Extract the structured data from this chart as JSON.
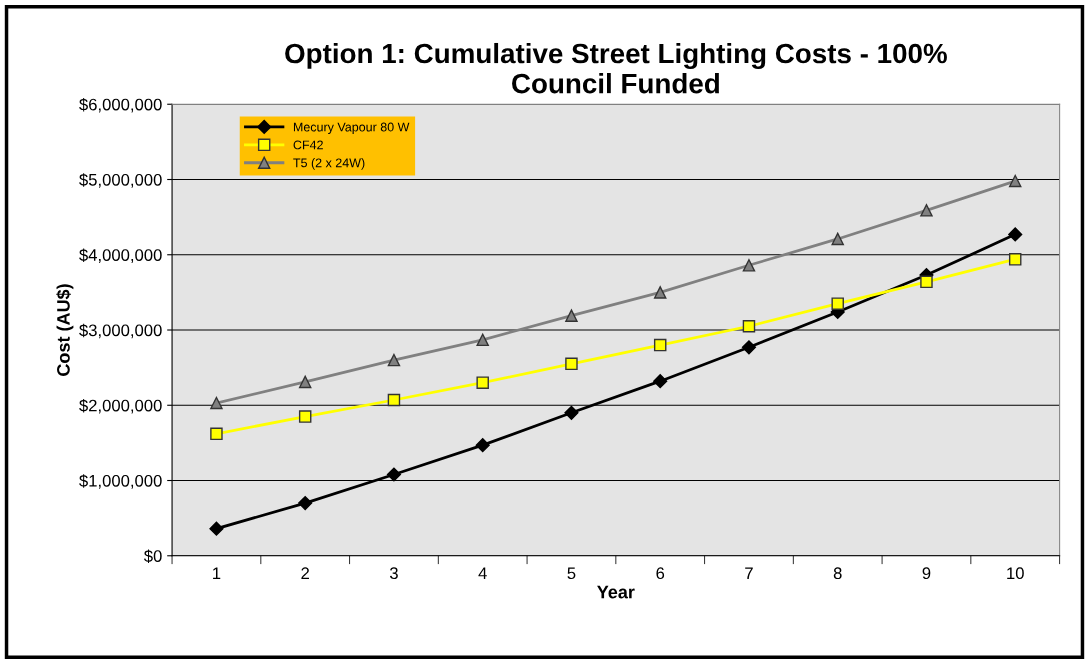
{
  "chart_data": {
    "type": "line",
    "title": "Option 1: Cumulative Street Lighting Costs - 100%\nCouncil Funded",
    "xlabel": "Year",
    "ylabel": "Cost (AU$)",
    "categories": [
      "1",
      "2",
      "3",
      "4",
      "5",
      "6",
      "7",
      "8",
      "9",
      "10"
    ],
    "series": [
      {
        "name": "Mecury Vapour 80 W",
        "color": "#000000",
        "marker": "diamond",
        "values": [
          360000,
          700000,
          1080000,
          1470000,
          1900000,
          2320000,
          2770000,
          3240000,
          3730000,
          4270000
        ]
      },
      {
        "name": "CF42",
        "color": "#ffff00",
        "marker": "square",
        "values": [
          1620000,
          1850000,
          2070000,
          2300000,
          2550000,
          2800000,
          3050000,
          3350000,
          3640000,
          3940000
        ]
      },
      {
        "name": "T5 (2 x 24W)",
        "color": "#808080",
        "marker": "triangle",
        "values": [
          2030000,
          2310000,
          2600000,
          2870000,
          3190000,
          3500000,
          3860000,
          4210000,
          4590000,
          4980000
        ]
      }
    ],
    "ylim": [
      0,
      6000000
    ],
    "yticks": [
      {
        "value": 0,
        "label": "$0"
      },
      {
        "value": 1000000,
        "label": "$1,000,000"
      },
      {
        "value": 2000000,
        "label": "$2,000,000"
      },
      {
        "value": 3000000,
        "label": "$3,000,000"
      },
      {
        "value": 4000000,
        "label": "$4,000,000"
      },
      {
        "value": 5000000,
        "label": "$5,000,000"
      },
      {
        "value": 6000000,
        "label": "$6,000,000"
      }
    ],
    "grid": "y",
    "legend": "top left",
    "line_style": "solid"
  }
}
